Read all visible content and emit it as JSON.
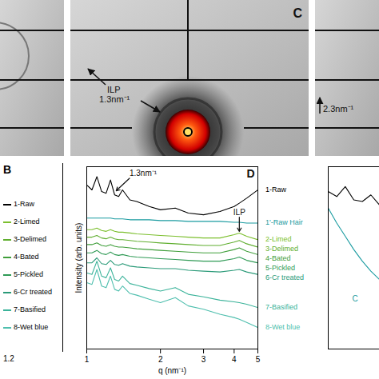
{
  "chart_data": {
    "type": "line",
    "panel": "D",
    "x_label": "q (nm⁻¹)",
    "y_label": "Intensity (arb. units)",
    "log": "x",
    "xlim": [
      1,
      5
    ],
    "xticks": [
      1,
      2,
      3,
      4,
      5
    ],
    "ylim": [
      0,
      11
    ],
    "yticks": [],
    "tick_labels": "x",
    "legend": "right",
    "x": [
      1,
      1.05,
      1.1,
      1.15,
      1.2,
      1.25,
      1.3,
      1.35,
      1.4,
      1.5,
      1.6,
      1.8,
      2,
      2.3,
      2.6,
      3,
      3.5,
      4,
      4.2,
      4.5,
      5
    ],
    "series": [
      {
        "name": "1-Raw",
        "color": "#000000",
        "values": [
          9.9,
          9.6,
          10.4,
          9.5,
          9.4,
          10.2,
          9.3,
          9.2,
          9.6,
          9.0,
          8.9,
          8.6,
          8.4,
          8.5,
          8.2,
          8.1,
          8.3,
          8.6,
          8.8,
          9.1,
          9.6
        ]
      },
      {
        "name": "1'-Raw Hair",
        "color": "#1a9ba0",
        "values": [
          7.9,
          7.9,
          7.9,
          7.9,
          7.9,
          7.9,
          7.85,
          7.85,
          7.85,
          7.8,
          7.8,
          7.8,
          7.75,
          7.75,
          7.7,
          7.7,
          7.7,
          7.65,
          7.65,
          7.6,
          7.6
        ]
      },
      {
        "name": "2-Limed",
        "color": "#7cbf2e",
        "values": [
          7.2,
          7.2,
          7.3,
          7.15,
          7.1,
          7.2,
          7.1,
          7.05,
          7.05,
          7.0,
          6.95,
          6.9,
          6.85,
          6.8,
          6.75,
          6.7,
          6.7,
          6.9,
          7.0,
          6.8,
          6.6
        ]
      },
      {
        "name": "3-Delimed",
        "color": "#5fae2e",
        "values": [
          6.75,
          6.75,
          6.85,
          6.7,
          6.65,
          6.75,
          6.65,
          6.6,
          6.6,
          6.55,
          6.5,
          6.45,
          6.4,
          6.35,
          6.3,
          6.25,
          6.25,
          6.45,
          6.55,
          6.35,
          6.15
        ]
      },
      {
        "name": "4-Bated",
        "color": "#3f9e3a",
        "values": [
          6.3,
          6.3,
          6.4,
          6.25,
          6.2,
          6.3,
          6.2,
          6.15,
          6.15,
          6.1,
          6.05,
          6.0,
          5.95,
          5.9,
          5.85,
          5.8,
          5.8,
          6.0,
          6.1,
          5.9,
          5.7
        ]
      },
      {
        "name": "5-Pickled",
        "color": "#2f9a55",
        "values": [
          5.8,
          5.8,
          5.95,
          5.75,
          5.7,
          5.85,
          5.7,
          5.65,
          5.7,
          5.6,
          5.55,
          5.5,
          5.45,
          5.4,
          5.35,
          5.3,
          5.3,
          5.45,
          5.55,
          5.35,
          5.2
        ]
      },
      {
        "name": "6-Cr treated",
        "color": "#2a9a78",
        "values": [
          5.2,
          5.2,
          5.5,
          5.15,
          5.1,
          5.35,
          5.1,
          5.05,
          5.15,
          5.0,
          4.95,
          4.9,
          4.85,
          4.85,
          4.75,
          4.7,
          4.65,
          4.75,
          4.8,
          4.65,
          4.5
        ]
      },
      {
        "name": "7-Basified",
        "color": "#3bb39a",
        "values": [
          4.6,
          4.5,
          5.3,
          4.4,
          4.3,
          4.9,
          4.2,
          4.1,
          4.4,
          3.95,
          3.85,
          3.65,
          3.5,
          3.7,
          3.3,
          3.15,
          2.95,
          2.85,
          2.8,
          2.7,
          2.5
        ]
      },
      {
        "name": "8-Wet blue",
        "color": "#4fbfae",
        "values": [
          4.0,
          3.9,
          4.8,
          3.8,
          3.7,
          4.4,
          3.6,
          3.5,
          3.8,
          3.35,
          3.25,
          3.0,
          2.8,
          3.1,
          2.6,
          2.4,
          2.1,
          1.9,
          1.8,
          1.6,
          1.3
        ]
      }
    ],
    "annotations": [
      {
        "text": "1.3nm⁻¹",
        "x": 1.3,
        "series": "1-Raw"
      },
      {
        "text": "ILP",
        "x": 4.2,
        "series": "2-Limed"
      }
    ]
  },
  "image_panels": [
    {
      "letter": "C",
      "labels": [
        "ILP",
        "1.3nm⁻¹"
      ]
    },
    {
      "labels": [
        "2.3nm⁻¹"
      ]
    }
  ],
  "panel_B": {
    "letter": "B",
    "legend": [
      "1-Raw",
      "2-Limed",
      "3-Delimed",
      "4-Bated",
      "5-Pickled",
      "6-Cr treated",
      "7-Basified",
      "8-Wet blue"
    ],
    "tick_label": "1.2"
  },
  "panel_F": {
    "label": "C",
    "x": [
      1,
      1.1,
      1.2,
      1.3,
      1.4,
      1.5,
      1.6
    ],
    "xlim": [
      1,
      1.6
    ],
    "ylim": [
      0,
      11
    ],
    "tick_labels": false,
    "series": [
      {
        "color": "#000000",
        "values": [
          9.5,
          9.2,
          9.8,
          9.0,
          8.9,
          9.3,
          8.7
        ]
      },
      {
        "color": "#1a9ba0",
        "values": [
          8.5,
          7.6,
          6.8,
          6.0,
          5.3,
          4.7,
          4.2
        ]
      }
    ]
  }
}
